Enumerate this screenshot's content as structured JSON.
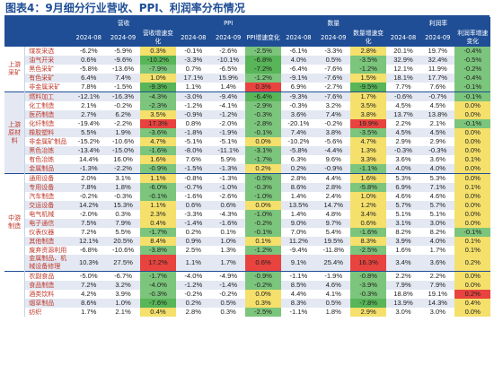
{
  "title": "图表4：9月细分行业营收、PPI、利润率分布情况",
  "colors": {
    "header_bg": "#1f4e96",
    "green_light": "#7cc57c",
    "green": "#58b558",
    "yellow": "#f4e06b",
    "orange": "#f2a64b",
    "red": "#e8433f"
  },
  "header": {
    "groups": [
      "营收",
      "PPI",
      "数量",
      "利润率"
    ],
    "sub": [
      "2024-08",
      "2024-09",
      "营收增速变化",
      "2024-08",
      "2024-09",
      "PPI增速变化",
      "2024-08",
      "2024-09",
      "数量增速变化",
      "2024-08",
      "2024-09",
      "利润率增速变化"
    ]
  },
  "sections": [
    {
      "label": "上游采矿",
      "rows": [
        {
          "name": "煤炭采选",
          "v": [
            "-6.2%",
            "-5.9%",
            "0.3%",
            "-0.1%",
            "-2.6%",
            "-2.5%",
            "-6.1%",
            "-3.3%",
            "2.8%",
            "20.1%",
            "19.7%",
            "-0.4%"
          ],
          "c": [
            "",
            "",
            "y",
            "",
            "",
            "g1",
            "",
            "",
            "y",
            "",
            "",
            "g1"
          ]
        },
        {
          "name": "油气开采",
          "v": [
            "0.6%",
            "-9.6%",
            "-10.2%",
            "-3.3%",
            "-10.1%",
            "-6.8%",
            "4.0%",
            "0.5%",
            "-3.5%",
            "32.9%",
            "32.4%",
            "-0.5%"
          ],
          "c": [
            "",
            "",
            "g2",
            "",
            "",
            "g2",
            "",
            "",
            "g1",
            "",
            "",
            "g1"
          ]
        },
        {
          "name": "黑色采矿",
          "v": [
            "-5.8%",
            "-13.6%",
            "-7.9%",
            "0.7%",
            "-6.5%",
            "-7.2%",
            "-6.4%",
            "-7.6%",
            "-1.2%",
            "12.1%",
            "11.9%",
            "-0.2%"
          ],
          "c": [
            "",
            "",
            "g1",
            "",
            "",
            "g2",
            "",
            "",
            "g1",
            "",
            "",
            "g1"
          ]
        },
        {
          "name": "有色采矿",
          "v": [
            "6.4%",
            "7.4%",
            "1.0%",
            "17.1%",
            "15.9%",
            "-1.2%",
            "-9.1%",
            "-7.6%",
            "1.5%",
            "18.1%",
            "17.7%",
            "-0.4%"
          ],
          "c": [
            "",
            "",
            "y",
            "",
            "",
            "g1",
            "",
            "",
            "y",
            "",
            "",
            "g1"
          ]
        },
        {
          "name": "非金属采矿",
          "v": [
            "7.8%",
            "-1.5%",
            "-9.3%",
            "1.1%",
            "1.4%",
            "0.3%",
            "6.9%",
            "-2.7%",
            "-9.5%",
            "7.7%",
            "7.6%",
            "-0.1%"
          ],
          "c": [
            "",
            "",
            "g2",
            "",
            "",
            "r",
            "",
            "",
            "g2",
            "",
            "",
            "g1"
          ]
        }
      ]
    },
    {
      "label": "上游原材料",
      "rows": [
        {
          "name": "燃料加工",
          "v": [
            "-12.1%",
            "-16.3%",
            "-4.3%",
            "-3.0%",
            "-9.4%",
            "-6.4%",
            "-9.3%",
            "-7.6%",
            "1.7%",
            "-0.6%",
            "-0.7%",
            "-0.1%"
          ],
          "c": [
            "",
            "",
            "g1",
            "",
            "",
            "g2",
            "",
            "",
            "y",
            "",
            "",
            "g1"
          ]
        },
        {
          "name": "化工制造",
          "v": [
            "2.1%",
            "-0.2%",
            "-2.3%",
            "-1.2%",
            "-4.1%",
            "-2.9%",
            "-0.3%",
            "3.2%",
            "3.5%",
            "4.5%",
            "4.5%",
            "0.0%"
          ],
          "c": [
            "",
            "",
            "g1",
            "",
            "",
            "g1",
            "",
            "",
            "y",
            "",
            "",
            "y"
          ]
        },
        {
          "name": "医药制造",
          "v": [
            "2.7%",
            "6.2%",
            "3.5%",
            "-0.9%",
            "-1.2%",
            "-0.3%",
            "3.6%",
            "7.4%",
            "3.8%",
            "13.7%",
            "13.8%",
            "0.0%"
          ],
          "c": [
            "",
            "",
            "y",
            "",
            "",
            "g1",
            "",
            "",
            "y",
            "",
            "",
            "y"
          ]
        },
        {
          "name": "化纤制造",
          "v": [
            "-19.4%",
            "-2.2%",
            "17.3%",
            "0.8%",
            "-2.0%",
            "-2.8%",
            "-20.1%",
            "-0.2%",
            "19.9%",
            "2.2%",
            "2.1%",
            "-0.1%"
          ],
          "c": [
            "",
            "",
            "r",
            "",
            "",
            "g1",
            "",
            "",
            "r",
            "",
            "",
            "g1"
          ]
        },
        {
          "name": "橡胶塑料",
          "v": [
            "5.5%",
            "1.9%",
            "-3.6%",
            "-1.8%",
            "-1.9%",
            "-0.1%",
            "7.4%",
            "3.8%",
            "-3.5%",
            "4.5%",
            "4.5%",
            "0.0%"
          ],
          "c": [
            "",
            "",
            "g1",
            "",
            "",
            "g1",
            "",
            "",
            "g1",
            "",
            "",
            "y"
          ]
        },
        {
          "name": "非金属矿制品",
          "v": [
            "-15.2%",
            "-10.6%",
            "4.7%",
            "-5.1%",
            "-5.1%",
            "0.0%",
            "-10.2%",
            "-5.6%",
            "4.7%",
            "2.9%",
            "2.9%",
            "0.0%"
          ],
          "c": [
            "",
            "",
            "y",
            "",
            "",
            "y",
            "",
            "",
            "y",
            "",
            "",
            "y"
          ]
        },
        {
          "name": "黑色冶炼",
          "v": [
            "-13.4%",
            "-15.0%",
            "-1.6%",
            "-8.0%",
            "-11.1%",
            "-3.1%",
            "-5.8%",
            "-4.4%",
            "1.3%",
            "-0.3%",
            "-0.3%",
            "0.0%"
          ],
          "c": [
            "",
            "",
            "g1",
            "",
            "",
            "g1",
            "",
            "",
            "y",
            "",
            "",
            "y"
          ]
        },
        {
          "name": "有色冶炼",
          "v": [
            "14.4%",
            "16.0%",
            "1.6%",
            "7.6%",
            "5.9%",
            "-1.7%",
            "6.3%",
            "9.6%",
            "3.3%",
            "3.6%",
            "3.6%",
            "0.1%"
          ],
          "c": [
            "",
            "",
            "y",
            "",
            "",
            "g1",
            "",
            "",
            "y",
            "",
            "",
            "y"
          ]
        },
        {
          "name": "金属制品",
          "v": [
            "-1.3%",
            "-2.2%",
            "-0.9%",
            "-1.5%",
            "-1.3%",
            "0.2%",
            "0.2%",
            "-0.9%",
            "-1.1%",
            "4.0%",
            "4.0%",
            "0.0%"
          ],
          "c": [
            "",
            "",
            "g1",
            "",
            "",
            "y",
            "",
            "",
            "g1",
            "",
            "",
            "y"
          ]
        }
      ]
    },
    {
      "label": "中游制造",
      "rows": [
        {
          "name": "通用设备",
          "v": [
            "2.0%",
            "3.1%",
            "1.1%",
            "-0.8%",
            "-1.3%",
            "-0.5%",
            "2.8%",
            "4.4%",
            "1.6%",
            "5.3%",
            "5.3%",
            "0.0%"
          ],
          "c": [
            "",
            "",
            "y",
            "",
            "",
            "g1",
            "",
            "",
            "y",
            "",
            "",
            "y"
          ]
        },
        {
          "name": "专用设备",
          "v": [
            "7.8%",
            "1.8%",
            "-6.0%",
            "-0.7%",
            "-1.0%",
            "-0.3%",
            "8.6%",
            "2.8%",
            "-5.8%",
            "6.9%",
            "7.1%",
            "0.1%"
          ],
          "c": [
            "",
            "",
            "g1",
            "",
            "",
            "g1",
            "",
            "",
            "g1",
            "",
            "",
            "y"
          ]
        },
        {
          "name": "汽车制造",
          "v": [
            "-0.2%",
            "-0.3%",
            "-0.1%",
            "-1.6%",
            "-2.6%",
            "-1.0%",
            "1.4%",
            "2.4%",
            "1.0%",
            "4.6%",
            "4.6%",
            "0.0%"
          ],
          "c": [
            "",
            "",
            "g1",
            "",
            "",
            "g1",
            "",
            "",
            "y",
            "",
            "",
            "y"
          ]
        },
        {
          "name": "交运设备",
          "v": [
            "14.2%",
            "15.3%",
            "1.1%",
            "0.6%",
            "0.6%",
            "0.0%",
            "13.5%",
            "14.7%",
            "1.2%",
            "5.7%",
            "5.7%",
            "0.0%"
          ],
          "c": [
            "",
            "",
            "y",
            "",
            "",
            "y",
            "",
            "",
            "y",
            "",
            "",
            "y"
          ]
        },
        {
          "name": "电气机械",
          "v": [
            "-2.0%",
            "0.3%",
            "2.3%",
            "-3.3%",
            "-4.3%",
            "-1.0%",
            "1.4%",
            "4.8%",
            "3.4%",
            "5.1%",
            "5.1%",
            "0.0%"
          ],
          "c": [
            "",
            "",
            "y",
            "",
            "",
            "g1",
            "",
            "",
            "y",
            "",
            "",
            "y"
          ]
        },
        {
          "name": "电子通信",
          "v": [
            "7.5%",
            "7.9%",
            "0.4%",
            "-1.4%",
            "-1.6%",
            "-0.2%",
            "9.0%",
            "9.7%",
            "0.6%",
            "3.1%",
            "3.0%",
            "0.0%"
          ],
          "c": [
            "",
            "",
            "y",
            "",
            "",
            "g1",
            "",
            "",
            "y",
            "",
            "",
            "y"
          ]
        },
        {
          "name": "仪表仪器",
          "v": [
            "7.2%",
            "5.5%",
            "-1.7%",
            "0.2%",
            "0.1%",
            "-0.1%",
            "7.0%",
            "5.4%",
            "-1.6%",
            "8.2%",
            "8.2%",
            "-0.1%"
          ],
          "c": [
            "",
            "",
            "g1",
            "",
            "",
            "g1",
            "",
            "",
            "g1",
            "",
            "",
            "g1"
          ]
        },
        {
          "name": "其他制造",
          "v": [
            "12.1%",
            "20.5%",
            "8.4%",
            "0.9%",
            "1.0%",
            "0.1%",
            "11.2%",
            "19.5%",
            "8.3%",
            "3.9%",
            "4.0%",
            "0.1%"
          ],
          "c": [
            "",
            "",
            "y",
            "",
            "",
            "y",
            "",
            "",
            "y",
            "",
            "",
            "y"
          ]
        },
        {
          "name": "废弃资源利用",
          "v": [
            "-6.8%",
            "-10.6%",
            "-3.8%",
            "2.5%",
            "1.3%",
            "-1.2%",
            "-9.4%",
            "-11.8%",
            "-2.5%",
            "1.6%",
            "1.7%",
            "0.1%"
          ],
          "c": [
            "",
            "",
            "g1",
            "",
            "",
            "g1",
            "",
            "",
            "g1",
            "",
            "",
            "y"
          ]
        },
        {
          "name": "金属制品、机械设备修理",
          "v": [
            "10.3%",
            "27.5%",
            "17.2%",
            "1.1%",
            "1.7%",
            "0.6%",
            "9.1%",
            "25.4%",
            "16.3%",
            "3.4%",
            "3.6%",
            "0.2%"
          ],
          "c": [
            "",
            "",
            "r",
            "",
            "",
            "r",
            "",
            "",
            "r",
            "",
            "",
            "y"
          ]
        }
      ]
    },
    {
      "label": "",
      "rows": [
        {
          "name": "农副食品",
          "v": [
            "-5.0%",
            "-6.7%",
            "-1.7%",
            "-4.0%",
            "-4.9%",
            "-0.9%",
            "-1.1%",
            "-1.9%",
            "-0.8%",
            "2.2%",
            "2.2%",
            "0.0%"
          ],
          "c": [
            "",
            "",
            "g1",
            "",
            "",
            "g1",
            "",
            "",
            "g1",
            "",
            "",
            "y"
          ]
        },
        {
          "name": "食品制造",
          "v": [
            "7.2%",
            "3.2%",
            "-4.0%",
            "-1.2%",
            "-1.4%",
            "-0.2%",
            "8.5%",
            "4.6%",
            "-3.9%",
            "7.9%",
            "7.9%",
            "0.0%"
          ],
          "c": [
            "",
            "",
            "g1",
            "",
            "",
            "g1",
            "",
            "",
            "g1",
            "",
            "",
            "y"
          ]
        },
        {
          "name": "酒类饮料",
          "v": [
            "4.2%",
            "3.9%",
            "-0.3%",
            "-0.2%",
            "-0.2%",
            "0.0%",
            "4.4%",
            "4.1%",
            "-0.3%",
            "18.8%",
            "19.1%",
            "0.2%"
          ],
          "c": [
            "",
            "",
            "g1",
            "",
            "",
            "y",
            "",
            "",
            "g1",
            "",
            "",
            "r"
          ]
        },
        {
          "name": "烟草制品",
          "v": [
            "8.6%",
            "1.0%",
            "-7.6%",
            "0.2%",
            "0.5%",
            "0.3%",
            "8.3%",
            "0.5%",
            "-7.8%",
            "13.9%",
            "14.3%",
            "0.4%"
          ],
          "c": [
            "",
            "",
            "g2",
            "",
            "",
            "y",
            "",
            "",
            "g2",
            "",
            "",
            "y"
          ]
        },
        {
          "name": "纺织",
          "v": [
            "1.7%",
            "2.1%",
            "0.4%",
            "2.8%",
            "0.3%",
            "-2.5%",
            "-1.1%",
            "1.8%",
            "2.9%",
            "3.0%",
            "3.0%",
            "0.0%"
          ],
          "c": [
            "",
            "",
            "y",
            "",
            "",
            "g1",
            "",
            "",
            "y",
            "",
            "",
            "y"
          ]
        }
      ]
    }
  ]
}
